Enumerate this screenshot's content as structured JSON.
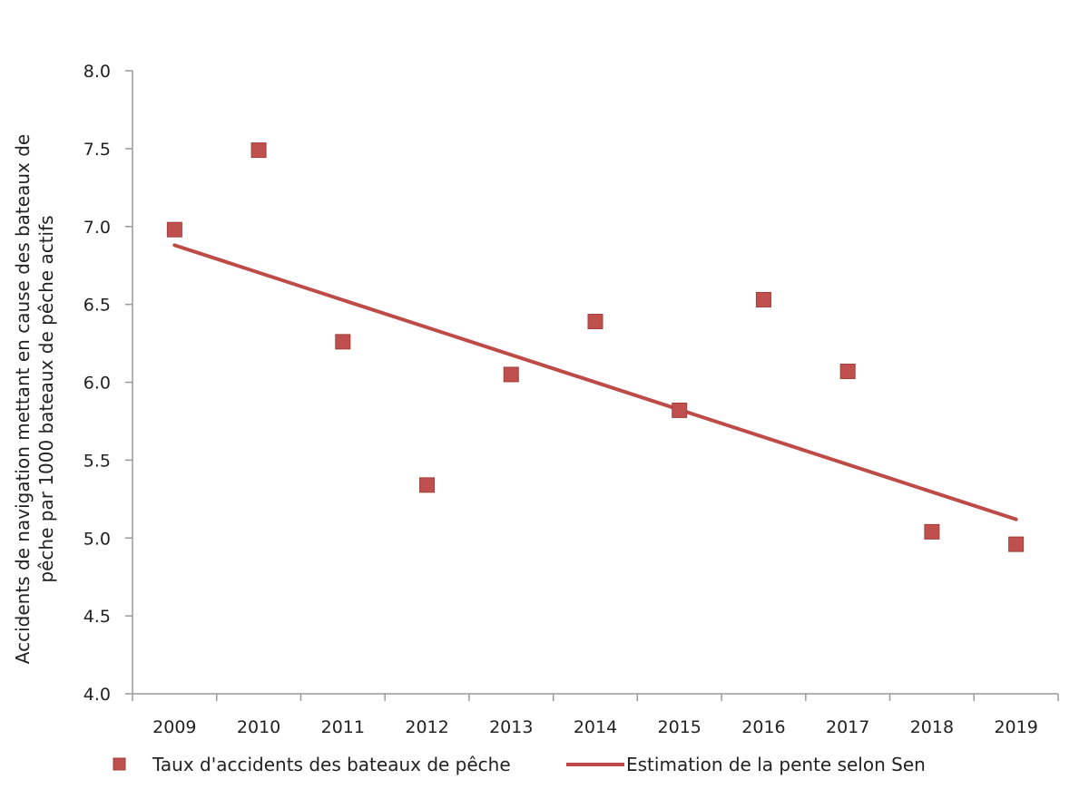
{
  "chart_data": {
    "type": "scatter",
    "title": "",
    "xlabel": "",
    "ylabel": "Accidents de navigation mettant en cause des bateaux de pêche par 1000 bateaux de pêche actifs",
    "ylabel_lines": [
      "Accidents de navigation mettant en cause des bateaux de",
      "pêche par 1000 bateaux de pêche actifs"
    ],
    "categories": [
      "2009",
      "2010",
      "2011",
      "2012",
      "2013",
      "2014",
      "2015",
      "2016",
      "2017",
      "2018",
      "2019"
    ],
    "ylim": [
      4.0,
      8.0
    ],
    "yticks": [
      "4.0",
      "4.5",
      "5.0",
      "5.5",
      "6.0",
      "6.5",
      "7.0",
      "7.5",
      "8.0"
    ],
    "grid": false,
    "legend_position": "bottom",
    "series": [
      {
        "name": "Taux d'accidents des bateaux de pêche",
        "kind": "scatter",
        "color": "#c0504d",
        "values": [
          6.98,
          7.49,
          6.26,
          5.34,
          6.05,
          6.39,
          5.82,
          6.53,
          6.07,
          5.04,
          4.96
        ]
      },
      {
        "name": "Estimation de la pente selon Sen",
        "kind": "line",
        "color": "#be4b48",
        "endpoints": [
          {
            "x": "2009",
            "y": 6.88
          },
          {
            "x": "2019",
            "y": 5.12
          }
        ]
      }
    ]
  }
}
